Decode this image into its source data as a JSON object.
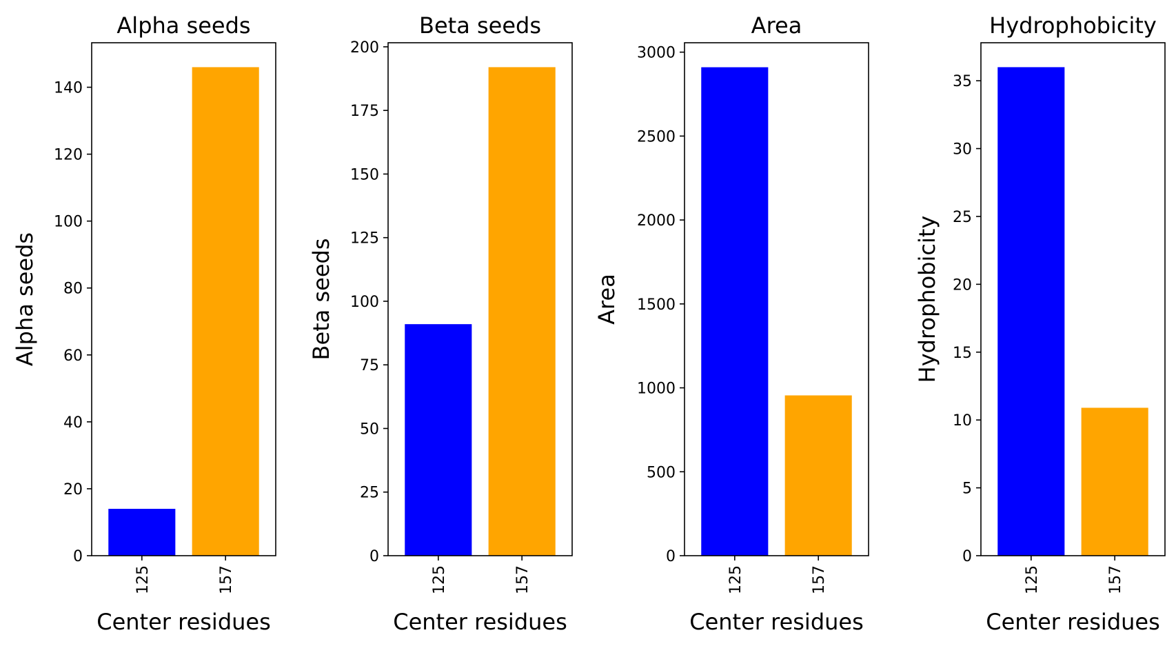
{
  "chart_data": [
    {
      "type": "bar",
      "title": "Alpha seeds",
      "xlabel": "Center residues",
      "ylabel": "Alpha seeds",
      "categories": [
        "125",
        "157"
      ],
      "values": [
        14,
        146
      ],
      "colors": [
        "#0000ff",
        "#ffa500"
      ],
      "ylim": [
        0,
        153.3
      ],
      "yticks": [
        0,
        20,
        40,
        60,
        80,
        100,
        120,
        140
      ],
      "grid": false
    },
    {
      "type": "bar",
      "title": "Beta seeds",
      "xlabel": "Center residues",
      "ylabel": "Beta seeds",
      "categories": [
        "125",
        "157"
      ],
      "values": [
        91,
        192
      ],
      "colors": [
        "#0000ff",
        "#ffa500"
      ],
      "ylim": [
        0,
        201.6
      ],
      "yticks": [
        0,
        25,
        50,
        75,
        100,
        125,
        150,
        175,
        200
      ],
      "grid": false
    },
    {
      "type": "bar",
      "title": "Area",
      "xlabel": "Center residues",
      "ylabel": "Area",
      "categories": [
        "125",
        "157"
      ],
      "values": [
        2910,
        955
      ],
      "colors": [
        "#0000ff",
        "#ffa500"
      ],
      "ylim": [
        0,
        3056
      ],
      "yticks": [
        0,
        500,
        1000,
        1500,
        2000,
        2500,
        3000
      ],
      "grid": false
    },
    {
      "type": "bar",
      "title": "Hydrophobicity",
      "xlabel": "Center residues",
      "ylabel": "Hydrophobicity",
      "categories": [
        "125",
        "157"
      ],
      "values": [
        36,
        10.9
      ],
      "colors": [
        "#0000ff",
        "#ffa500"
      ],
      "ylim": [
        0,
        37.8
      ],
      "yticks": [
        0,
        5,
        10,
        15,
        20,
        25,
        30,
        35
      ],
      "grid": false
    }
  ]
}
